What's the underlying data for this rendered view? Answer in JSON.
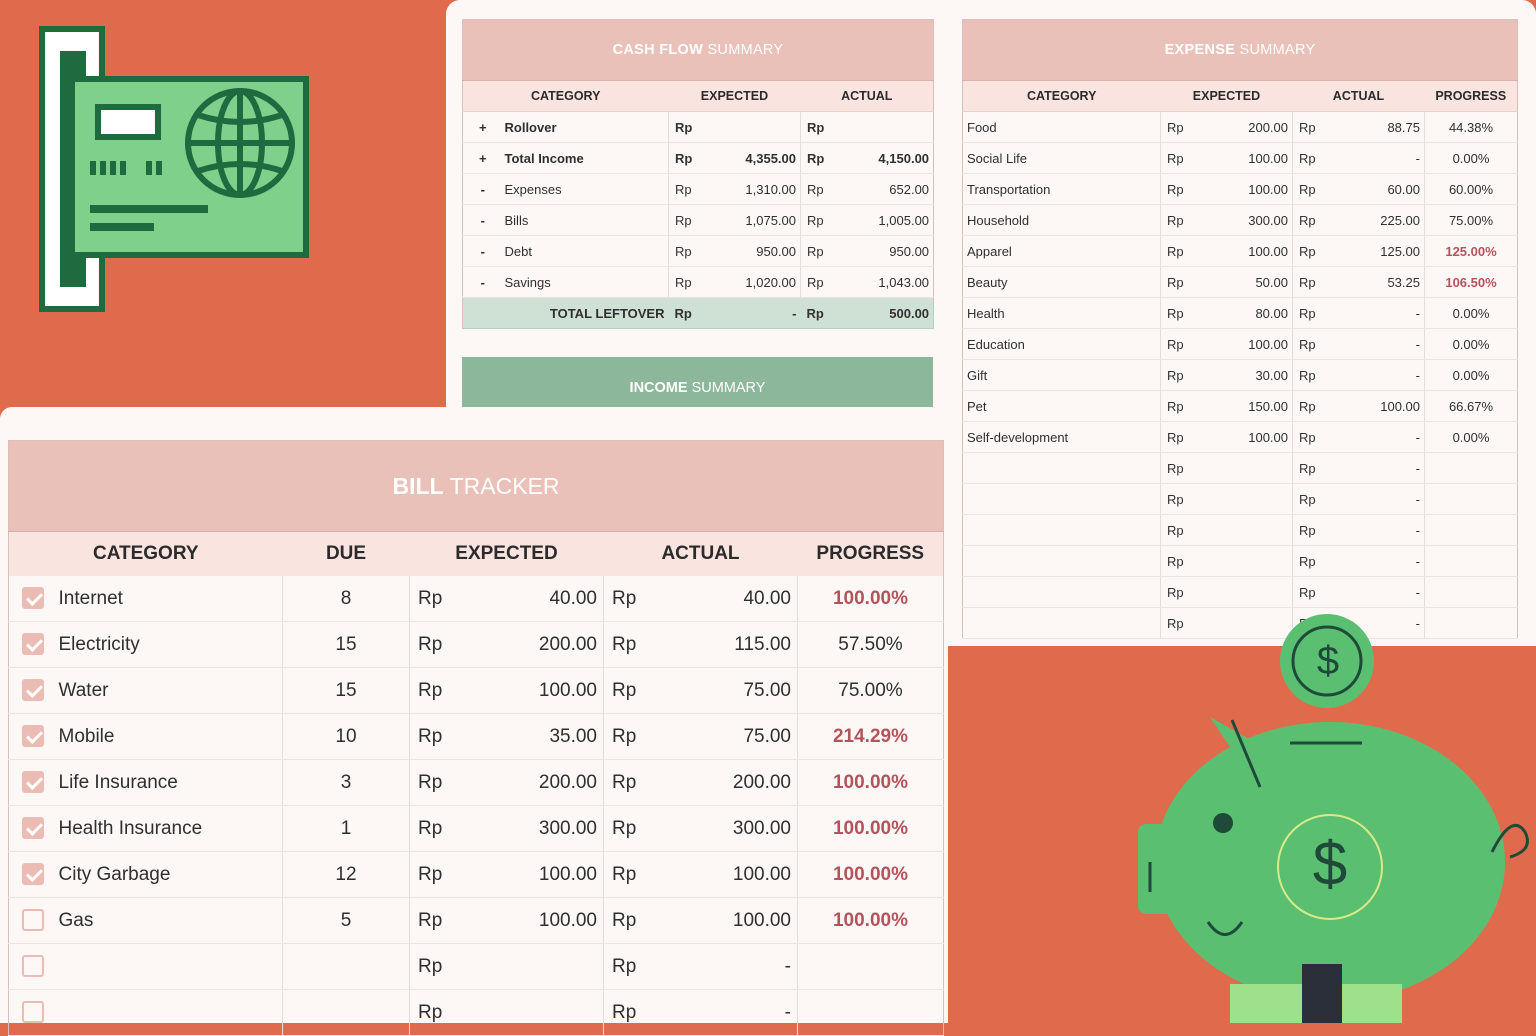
{
  "cash_flow": {
    "title_bold": "CASH FLOW",
    "title_rest": " SUMMARY",
    "headers": [
      "CATEGORY",
      "EXPECTED",
      "ACTUAL"
    ],
    "rows": [
      {
        "sign": "+",
        "label": "Rollover",
        "cur1": "Rp",
        "expected": "",
        "cur2": "Rp",
        "actual": "",
        "bold": true
      },
      {
        "sign": "+",
        "label": "Total Income",
        "cur1": "Rp",
        "expected": "4,355.00",
        "cur2": "Rp",
        "actual": "4,150.00",
        "bold": true
      },
      {
        "sign": "-",
        "label": "Expenses",
        "cur1": "Rp",
        "expected": "1,310.00",
        "cur2": "Rp",
        "actual": "652.00",
        "bold": false
      },
      {
        "sign": "-",
        "label": "Bills",
        "cur1": "Rp",
        "expected": "1,075.00",
        "cur2": "Rp",
        "actual": "1,005.00",
        "bold": false
      },
      {
        "sign": "-",
        "label": "Debt",
        "cur1": "Rp",
        "expected": "950.00",
        "cur2": "Rp",
        "actual": "950.00",
        "bold": false
      },
      {
        "sign": "-",
        "label": "Savings",
        "cur1": "Rp",
        "expected": "1,020.00",
        "cur2": "Rp",
        "actual": "1,043.00",
        "bold": false
      }
    ],
    "total": {
      "label": "TOTAL LEFTOVER",
      "cur1": "Rp",
      "expected": "-",
      "cur2": "Rp",
      "actual": "500.00"
    }
  },
  "income": {
    "title_bold": "INCOME",
    "title_rest": " SUMMARY"
  },
  "expense": {
    "title_bold": "EXPENSE",
    "title_rest": " SUMMARY",
    "headers": [
      "CATEGORY",
      "EXPECTED",
      "ACTUAL",
      "PROGRESS"
    ],
    "rows": [
      {
        "cat": "Food",
        "cur1": "Rp",
        "expected": "200.00",
        "cur2": "Rp",
        "actual": "88.75",
        "progress": "44.38%",
        "over": false
      },
      {
        "cat": "Social Life",
        "cur1": "Rp",
        "expected": "100.00",
        "cur2": "Rp",
        "actual": "-",
        "progress": "0.00%",
        "over": false
      },
      {
        "cat": "Transportation",
        "cur1": "Rp",
        "expected": "100.00",
        "cur2": "Rp",
        "actual": "60.00",
        "progress": "60.00%",
        "over": false
      },
      {
        "cat": "Household",
        "cur1": "Rp",
        "expected": "300.00",
        "cur2": "Rp",
        "actual": "225.00",
        "progress": "75.00%",
        "over": false
      },
      {
        "cat": "Apparel",
        "cur1": "Rp",
        "expected": "100.00",
        "cur2": "Rp",
        "actual": "125.00",
        "progress": "125.00%",
        "over": true
      },
      {
        "cat": "Beauty",
        "cur1": "Rp",
        "expected": "50.00",
        "cur2": "Rp",
        "actual": "53.25",
        "progress": "106.50%",
        "over": true
      },
      {
        "cat": "Health",
        "cur1": "Rp",
        "expected": "80.00",
        "cur2": "Rp",
        "actual": "-",
        "progress": "0.00%",
        "over": false
      },
      {
        "cat": "Education",
        "cur1": "Rp",
        "expected": "100.00",
        "cur2": "Rp",
        "actual": "-",
        "progress": "0.00%",
        "over": false
      },
      {
        "cat": "Gift",
        "cur1": "Rp",
        "expected": "30.00",
        "cur2": "Rp",
        "actual": "-",
        "progress": "0.00%",
        "over": false
      },
      {
        "cat": "Pet",
        "cur1": "Rp",
        "expected": "150.00",
        "cur2": "Rp",
        "actual": "100.00",
        "progress": "66.67%",
        "over": false
      },
      {
        "cat": "Self-development",
        "cur1": "Rp",
        "expected": "100.00",
        "cur2": "Rp",
        "actual": "-",
        "progress": "0.00%",
        "over": false
      },
      {
        "cat": "",
        "cur1": "Rp",
        "expected": "",
        "cur2": "Rp",
        "actual": "-",
        "progress": "",
        "over": false
      },
      {
        "cat": "",
        "cur1": "Rp",
        "expected": "",
        "cur2": "Rp",
        "actual": "-",
        "progress": "",
        "over": false
      },
      {
        "cat": "",
        "cur1": "Rp",
        "expected": "",
        "cur2": "Rp",
        "actual": "-",
        "progress": "",
        "over": false
      },
      {
        "cat": "",
        "cur1": "Rp",
        "expected": "",
        "cur2": "Rp",
        "actual": "-",
        "progress": "",
        "over": false
      },
      {
        "cat": "",
        "cur1": "Rp",
        "expected": "",
        "cur2": "Rp",
        "actual": "-",
        "progress": "",
        "over": false
      },
      {
        "cat": "",
        "cur1": "Rp",
        "expected": "",
        "cur2": "Rp",
        "actual": "-",
        "progress": "",
        "over": false
      }
    ]
  },
  "bill": {
    "title_bold": "BILL",
    "title_rest": " TRACKER",
    "headers": [
      "CATEGORY",
      "DUE",
      "EXPECTED",
      "ACTUAL",
      "PROGRESS"
    ],
    "rows": [
      {
        "checked": true,
        "cat": "Internet",
        "due": "8",
        "cur1": "Rp",
        "expected": "40.00",
        "cur2": "Rp",
        "actual": "40.00",
        "progress": "100.00%",
        "over": true
      },
      {
        "checked": true,
        "cat": "Electricity",
        "due": "15",
        "cur1": "Rp",
        "expected": "200.00",
        "cur2": "Rp",
        "actual": "115.00",
        "progress": "57.50%",
        "over": false
      },
      {
        "checked": true,
        "cat": "Water",
        "due": "15",
        "cur1": "Rp",
        "expected": "100.00",
        "cur2": "Rp",
        "actual": "75.00",
        "progress": "75.00%",
        "over": false
      },
      {
        "checked": true,
        "cat": "Mobile",
        "due": "10",
        "cur1": "Rp",
        "expected": "35.00",
        "cur2": "Rp",
        "actual": "75.00",
        "progress": "214.29%",
        "over": true
      },
      {
        "checked": true,
        "cat": "Life Insurance",
        "due": "3",
        "cur1": "Rp",
        "expected": "200.00",
        "cur2": "Rp",
        "actual": "200.00",
        "progress": "100.00%",
        "over": true
      },
      {
        "checked": true,
        "cat": "Health Insurance",
        "due": "1",
        "cur1": "Rp",
        "expected": "300.00",
        "cur2": "Rp",
        "actual": "300.00",
        "progress": "100.00%",
        "over": true
      },
      {
        "checked": true,
        "cat": "City Garbage",
        "due": "12",
        "cur1": "Rp",
        "expected": "100.00",
        "cur2": "Rp",
        "actual": "100.00",
        "progress": "100.00%",
        "over": true
      },
      {
        "checked": false,
        "cat": "Gas",
        "due": "5",
        "cur1": "Rp",
        "expected": "100.00",
        "cur2": "Rp",
        "actual": "100.00",
        "progress": "100.00%",
        "over": true
      },
      {
        "checked": false,
        "cat": "",
        "due": "",
        "cur1": "Rp",
        "expected": "",
        "cur2": "Rp",
        "actual": "-",
        "progress": "",
        "over": false
      },
      {
        "checked": false,
        "cat": "",
        "due": "",
        "cur1": "Rp",
        "expected": "",
        "cur2": "Rp",
        "actual": "-",
        "progress": "",
        "over": false
      }
    ]
  },
  "illustrations": {
    "credit_card": "credit-card-icon",
    "piggy_bank": "piggy-bank-icon",
    "coin": "dollar-coin-icon",
    "dollar_sign": "$"
  },
  "colors": {
    "background": "#e06b4c",
    "header_pink": "#eac1b9",
    "subheader_pink": "#f9e4df",
    "income_green": "#8db79a",
    "total_green": "#cfe1d5",
    "over_budget": "#b5525c",
    "illustration_green": "#7ed08a",
    "illustration_dark_green": "#1f6b3f"
  }
}
